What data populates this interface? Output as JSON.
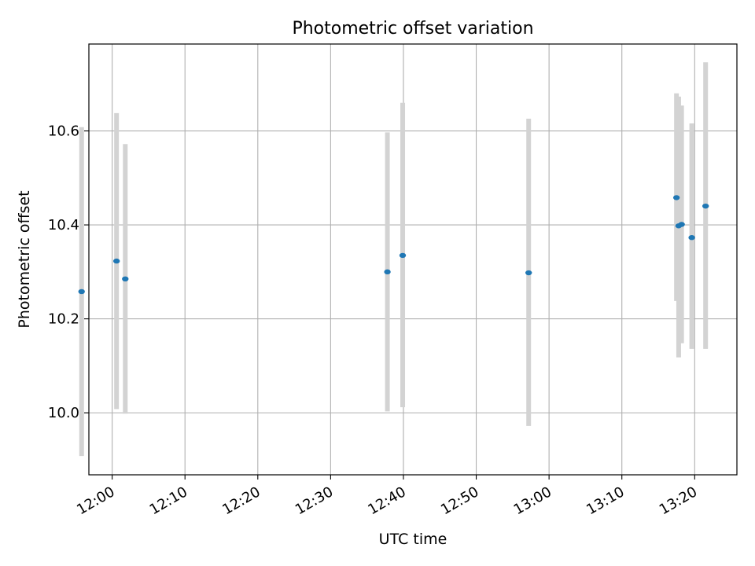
{
  "chart_data": {
    "type": "scatter",
    "title": "Photometric offset variation",
    "xlabel": "UTC time",
    "ylabel": "Photometric offset",
    "x_ticks": [
      "12:00",
      "12:10",
      "12:20",
      "12:30",
      "12:40",
      "12:50",
      "13:00",
      "13:10",
      "13:20"
    ],
    "y_ticks": [
      "10.0",
      "10.2",
      "10.4",
      "10.6"
    ],
    "xlim": [
      "11:56.8",
      "13:25.8"
    ],
    "ylim": [
      9.868,
      10.785
    ],
    "grid": true,
    "series": [
      {
        "x": [
          "11:55.8",
          "12:00.6",
          "12:01.8",
          "12:37.8",
          "12:39.9",
          "12:57.2",
          "13:17.5",
          "13:17.8",
          "13:18.2",
          "13:19.6",
          "13:21.5"
        ],
        "y": [
          10.258,
          10.323,
          10.285,
          10.3,
          10.335,
          10.298,
          10.458,
          10.398,
          10.401,
          10.373,
          10.44
        ],
        "err_low": [
          9.908,
          10.008,
          9.998,
          10.003,
          10.012,
          9.972,
          10.238,
          10.118,
          10.148,
          10.136,
          10.136
        ],
        "err_high": [
          10.608,
          10.638,
          10.572,
          10.597,
          10.66,
          10.626,
          10.68,
          10.673,
          10.654,
          10.616,
          10.746
        ]
      }
    ],
    "colors": {
      "point": "#1f77b4",
      "errorbar": "#d3d3d3",
      "grid": "#b0b0b0"
    }
  }
}
